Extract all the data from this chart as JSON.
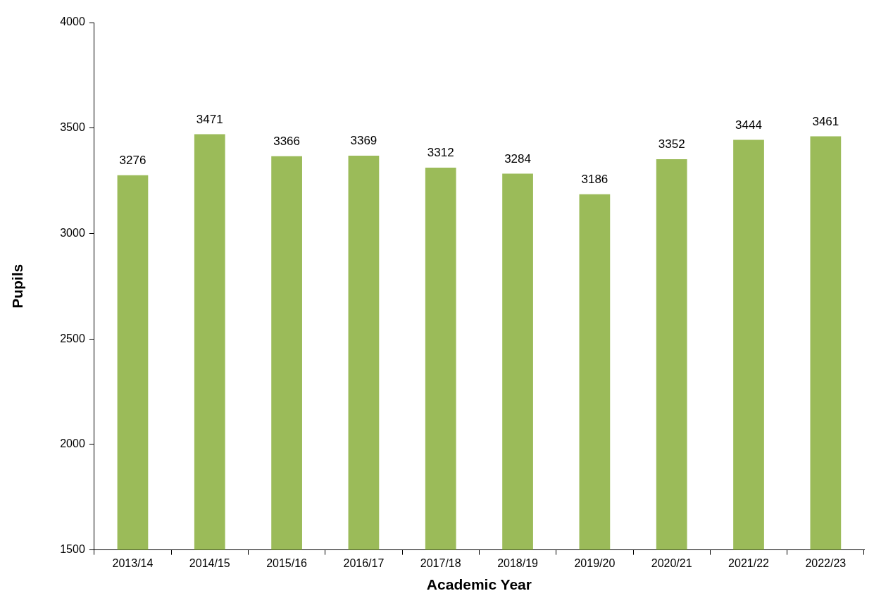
{
  "chart_data": {
    "type": "bar",
    "xlabel": "Academic Year",
    "ylabel": "Pupils",
    "categories": [
      "2013/14",
      "2014/15",
      "2015/16",
      "2016/17",
      "2017/18",
      "2018/19",
      "2019/20",
      "2020/21",
      "2021/22",
      "2022/23"
    ],
    "values": [
      3276,
      3471,
      3366,
      3369,
      3312,
      3284,
      3186,
      3352,
      3444,
      3461
    ],
    "color": "#9bbb59",
    "ylim": [
      1500,
      4000
    ],
    "yticks": [
      1500,
      2000,
      2500,
      3000,
      3500,
      4000
    ],
    "data_labels": true
  }
}
